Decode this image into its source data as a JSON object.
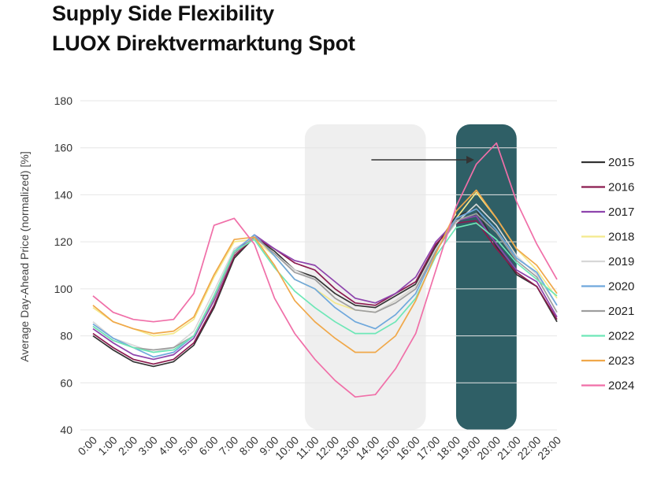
{
  "title_line1": "Supply Side Flexibility",
  "title_line2": "LUOX Direktvermarktung Spot",
  "chart_data": {
    "type": "line",
    "ylabel": "Average Day-Ahead Price (normalized) [%]",
    "xlabel": "",
    "ylim": [
      40,
      180
    ],
    "yticks": [
      40,
      60,
      80,
      100,
      120,
      140,
      160,
      180
    ],
    "grid": true,
    "legend_position": "right",
    "x": [
      "0:00",
      "1:00",
      "2:00",
      "3:00",
      "4:00",
      "5:00",
      "6:00",
      "7:00",
      "8:00",
      "9:00",
      "10:00",
      "11:00",
      "12:00",
      "13:00",
      "14:00",
      "15:00",
      "16:00",
      "17:00",
      "18:00",
      "19:00",
      "20:00",
      "21:00",
      "22:00",
      "23:00"
    ],
    "highlight_bands": [
      {
        "from_index": 10.5,
        "to_index": 16.5,
        "y_from": 40,
        "y_to": 170,
        "color": "#efefef"
      },
      {
        "from_index": 18.0,
        "to_index": 21.0,
        "y_from": 40,
        "y_to": 170,
        "color": "#2f5f66"
      }
    ],
    "annotation_arrow": {
      "from": {
        "x_index": 13.8,
        "y": 168
      },
      "to": {
        "x_index": 18.9,
        "y": 168
      }
    },
    "series": [
      {
        "name": "2015",
        "color": "#333333",
        "values": [
          80,
          74,
          69,
          67,
          69,
          76,
          92,
          113,
          122,
          116,
          108,
          105,
          98,
          93,
          92,
          97,
          102,
          118,
          131,
          134,
          118,
          106,
          101,
          86
        ]
      },
      {
        "name": "2016",
        "color": "#8b1a4f",
        "values": [
          81,
          75,
          70,
          68,
          70,
          77,
          93,
          114,
          122,
          117,
          111,
          108,
          100,
          94,
          93,
          98,
          103,
          119,
          128,
          129,
          117,
          107,
          101,
          87
        ]
      },
      {
        "name": "2017",
        "color": "#8e44ad",
        "values": [
          83,
          77,
          72,
          70,
          72,
          79,
          95,
          115,
          123,
          117,
          112,
          110,
          103,
          96,
          94,
          98,
          105,
          120,
          129,
          131,
          119,
          108,
          103,
          88
        ]
      },
      {
        "name": "2018",
        "color": "#f4e98c",
        "values": [
          92,
          86,
          83,
          80,
          81,
          87,
          105,
          120,
          121,
          114,
          104,
          100,
          94,
          91,
          90,
          95,
          101,
          116,
          130,
          141,
          130,
          117,
          108,
          96
        ]
      },
      {
        "name": "2019",
        "color": "#d7d7d7",
        "values": [
          86,
          79,
          76,
          73,
          75,
          82,
          99,
          117,
          122,
          115,
          108,
          104,
          96,
          91,
          90,
          95,
          101,
          117,
          128,
          136,
          127,
          114,
          106,
          93
        ]
      },
      {
        "name": "2020",
        "color": "#6fa8dc",
        "values": [
          85,
          79,
          75,
          71,
          73,
          80,
          97,
          116,
          123,
          114,
          104,
          100,
          92,
          86,
          83,
          89,
          98,
          116,
          130,
          134,
          125,
          113,
          107,
          93
        ]
      },
      {
        "name": "2021",
        "color": "#9e9e9e",
        "values": [
          84,
          78,
          75,
          74,
          75,
          80,
          96,
          115,
          122,
          115,
          107,
          104,
          96,
          91,
          90,
          94,
          100,
          116,
          129,
          132,
          124,
          112,
          105,
          90
        ]
      },
      {
        "name": "2022",
        "color": "#6ee7b7",
        "values": [
          84,
          78,
          75,
          73,
          74,
          80,
          97,
          116,
          121,
          109,
          99,
          92,
          86,
          81,
          81,
          86,
          96,
          114,
          126,
          128,
          121,
          111,
          104,
          97
        ]
      },
      {
        "name": "2023",
        "color": "#f0a84a",
        "values": [
          93,
          86,
          83,
          81,
          82,
          88,
          106,
          121,
          122,
          110,
          95,
          86,
          79,
          73,
          73,
          80,
          95,
          115,
          133,
          142,
          130,
          117,
          110,
          98
        ]
      },
      {
        "name": "2024",
        "color": "#f06fa8",
        "values": [
          97,
          90,
          87,
          86,
          87,
          98,
          127,
          130,
          119,
          96,
          81,
          70,
          61,
          54,
          55,
          66,
          81,
          108,
          135,
          153,
          162,
          137,
          119,
          104
        ]
      }
    ]
  }
}
